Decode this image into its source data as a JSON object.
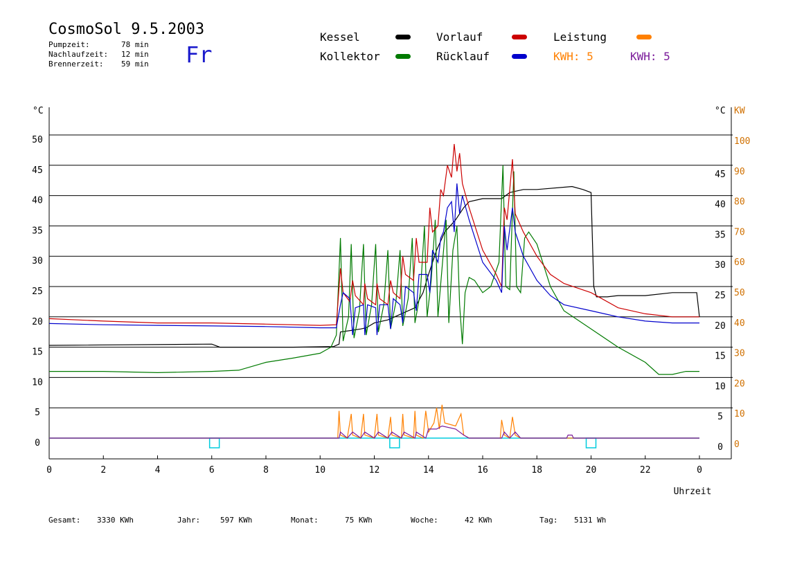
{
  "header": {
    "title": "CosmoSol 9.5.2003",
    "weekday": "Fr",
    "stats": [
      {
        "label": "Pumpzeit:",
        "value": "78 min"
      },
      {
        "label": "Nachlaufzeit:",
        "value": "12 min"
      },
      {
        "label": "Brennerzeit:",
        "value": "59 min"
      }
    ]
  },
  "legend": {
    "kessel": "Kessel",
    "kollektor": "Kollektor",
    "vorlauf": "Vorlauf",
    "ruecklauf": "Rücklauf",
    "leistung": "Leistung",
    "kwh_orange": "KWH: 5",
    "kwh_purple": "KWH: 5"
  },
  "footer": {
    "gesamt_label": "Gesamt:",
    "gesamt_value": "3330 KWh",
    "jahr_label": "Jahr:",
    "jahr_value": "597 KWh",
    "monat_label": "Monat:",
    "monat_value": "75 KWh",
    "woche_label": "Woche:",
    "woche_value": "42 KWh",
    "tag_label": "Tag:",
    "tag_value": "5131 Wh"
  },
  "colors": {
    "kessel": "#000000",
    "kollektor": "#007a00",
    "vorlauf": "#cc0000",
    "ruecklauf": "#0000cc",
    "leistung": "#ff8000",
    "kwh_purple": "#7a1a9a",
    "pump": "#00ccdd"
  },
  "chart_data": {
    "type": "line",
    "xlabel": "Uhrzeit",
    "ylabel_left": "°C",
    "ylabel_right_c": "°C",
    "ylabel_right_kw": "KW",
    "xlim": [
      0,
      24
    ],
    "ylim": [
      0,
      50
    ],
    "ylim_kw": [
      0,
      100
    ],
    "x_ticks": [
      "0",
      "2",
      "4",
      "6",
      "8",
      "10",
      "12",
      "14",
      "16",
      "18",
      "20",
      "22",
      "0"
    ],
    "y_ticks": [
      0,
      5,
      10,
      15,
      20,
      25,
      30,
      35,
      40,
      45,
      50
    ],
    "y_ticks_kw": [
      0,
      10,
      20,
      30,
      40,
      50,
      60,
      70,
      80,
      90,
      100
    ],
    "grid": true,
    "series": [
      {
        "name": "Kessel",
        "color": "#000000",
        "points": [
          [
            0,
            15.3
          ],
          [
            6,
            15.5
          ],
          [
            6.3,
            15
          ],
          [
            9,
            15
          ],
          [
            10.5,
            15.1
          ],
          [
            10.7,
            15.5
          ],
          [
            10.75,
            17.5
          ],
          [
            11.5,
            18
          ],
          [
            11.7,
            18.2
          ],
          [
            12,
            19
          ],
          [
            12.5,
            19.5
          ],
          [
            13,
            20.5
          ],
          [
            13.5,
            21.5
          ],
          [
            13.8,
            24
          ],
          [
            14,
            27
          ],
          [
            14.3,
            31
          ],
          [
            14.6,
            34
          ],
          [
            15,
            36
          ],
          [
            15.3,
            38
          ],
          [
            15.5,
            39
          ],
          [
            16,
            39.5
          ],
          [
            16.7,
            39.5
          ],
          [
            17,
            40.5
          ],
          [
            17.5,
            41
          ],
          [
            18,
            41
          ],
          [
            19.3,
            41.5
          ],
          [
            19.7,
            41
          ],
          [
            20,
            40.5
          ],
          [
            20.1,
            25
          ],
          [
            20.2,
            23.3
          ],
          [
            20.6,
            23.3
          ],
          [
            21,
            23.5
          ],
          [
            22,
            23.5
          ],
          [
            23,
            24
          ],
          [
            23.9,
            24
          ],
          [
            24,
            20
          ]
        ]
      },
      {
        "name": "Kollektor",
        "color": "#007a00",
        "points": [
          [
            0,
            11
          ],
          [
            2,
            11
          ],
          [
            4,
            10.8
          ],
          [
            6,
            11
          ],
          [
            7,
            11.2
          ],
          [
            8,
            12.5
          ],
          [
            9,
            13.2
          ],
          [
            10,
            14
          ],
          [
            10.4,
            15
          ],
          [
            10.6,
            17
          ],
          [
            10.75,
            33
          ],
          [
            10.85,
            16
          ],
          [
            11.05,
            20
          ],
          [
            11.15,
            32
          ],
          [
            11.25,
            16.5
          ],
          [
            11.45,
            21
          ],
          [
            11.6,
            32
          ],
          [
            11.7,
            17
          ],
          [
            11.9,
            22
          ],
          [
            12.05,
            32
          ],
          [
            12.15,
            17.5
          ],
          [
            12.35,
            22
          ],
          [
            12.5,
            31
          ],
          [
            12.6,
            18
          ],
          [
            12.8,
            22.5
          ],
          [
            12.95,
            31
          ],
          [
            13.05,
            18.5
          ],
          [
            13.25,
            23
          ],
          [
            13.4,
            33
          ],
          [
            13.5,
            19
          ],
          [
            13.7,
            24
          ],
          [
            13.85,
            35
          ],
          [
            13.95,
            20
          ],
          [
            14.1,
            26
          ],
          [
            14.25,
            36
          ],
          [
            14.35,
            20
          ],
          [
            14.5,
            28
          ],
          [
            14.65,
            36
          ],
          [
            14.75,
            19
          ],
          [
            14.9,
            31
          ],
          [
            15.05,
            35
          ],
          [
            15.15,
            22
          ],
          [
            15.25,
            15.5
          ],
          [
            15.35,
            24
          ],
          [
            15.5,
            26.5
          ],
          [
            15.7,
            26
          ],
          [
            16,
            24
          ],
          [
            16.3,
            25
          ],
          [
            16.6,
            29
          ],
          [
            16.75,
            45
          ],
          [
            16.85,
            25
          ],
          [
            17,
            24.5
          ],
          [
            17.15,
            44
          ],
          [
            17.25,
            25
          ],
          [
            17.4,
            24
          ],
          [
            17.55,
            33
          ],
          [
            17.7,
            34
          ],
          [
            18,
            32
          ],
          [
            18.5,
            25
          ],
          [
            19,
            21
          ],
          [
            20,
            18
          ],
          [
            21,
            15
          ],
          [
            22,
            12.5
          ],
          [
            22.5,
            10.5
          ],
          [
            23,
            10.5
          ],
          [
            23.5,
            11
          ],
          [
            24,
            11
          ]
        ]
      },
      {
        "name": "Vorlauf",
        "color": "#cc0000",
        "points": [
          [
            0,
            19.7
          ],
          [
            2,
            19.3
          ],
          [
            4,
            19
          ],
          [
            6,
            19
          ],
          [
            8,
            18.8
          ],
          [
            10,
            18.6
          ],
          [
            10.6,
            18.7
          ],
          [
            10.75,
            28
          ],
          [
            10.85,
            24
          ],
          [
            11.1,
            22.5
          ],
          [
            11.2,
            26
          ],
          [
            11.3,
            23.5
          ],
          [
            11.6,
            22
          ],
          [
            11.65,
            25.5
          ],
          [
            11.75,
            23
          ],
          [
            12.05,
            22
          ],
          [
            12.1,
            25.5
          ],
          [
            12.2,
            23
          ],
          [
            12.5,
            22
          ],
          [
            12.6,
            26
          ],
          [
            12.7,
            24
          ],
          [
            12.95,
            23
          ],
          [
            13.05,
            30
          ],
          [
            13.15,
            27
          ],
          [
            13.45,
            26
          ],
          [
            13.55,
            33
          ],
          [
            13.65,
            29
          ],
          [
            13.95,
            29
          ],
          [
            14.05,
            38
          ],
          [
            14.15,
            34
          ],
          [
            14.35,
            35
          ],
          [
            14.45,
            41
          ],
          [
            14.55,
            40
          ],
          [
            14.7,
            45
          ],
          [
            14.85,
            43
          ],
          [
            14.95,
            48.5
          ],
          [
            15.05,
            44
          ],
          [
            15.15,
            47
          ],
          [
            15.25,
            42
          ],
          [
            15.5,
            38
          ],
          [
            16,
            31
          ],
          [
            16.5,
            27
          ],
          [
            16.7,
            25
          ],
          [
            16.8,
            38
          ],
          [
            16.9,
            36
          ],
          [
            17.1,
            46
          ],
          [
            17.2,
            37
          ],
          [
            17.5,
            34
          ],
          [
            18,
            30
          ],
          [
            18.5,
            27
          ],
          [
            19,
            25.5
          ],
          [
            20,
            24
          ],
          [
            21,
            21.5
          ],
          [
            22,
            20.5
          ],
          [
            23,
            20
          ],
          [
            24,
            20
          ]
        ]
      },
      {
        "name": "Rücklauf",
        "color": "#0000cc",
        "points": [
          [
            0,
            18.9
          ],
          [
            2,
            18.7
          ],
          [
            4,
            18.6
          ],
          [
            6,
            18.5
          ],
          [
            8,
            18.4
          ],
          [
            10,
            18.2
          ],
          [
            10.6,
            18.2
          ],
          [
            10.75,
            22
          ],
          [
            10.85,
            24
          ],
          [
            11.1,
            23
          ],
          [
            11.2,
            17
          ],
          [
            11.3,
            21.5
          ],
          [
            11.6,
            22
          ],
          [
            11.65,
            17
          ],
          [
            11.75,
            22
          ],
          [
            12.05,
            21.5
          ],
          [
            12.1,
            17
          ],
          [
            12.2,
            22
          ],
          [
            12.5,
            22
          ],
          [
            12.6,
            18
          ],
          [
            12.7,
            23
          ],
          [
            12.95,
            22
          ],
          [
            13.05,
            19
          ],
          [
            13.15,
            25
          ],
          [
            13.45,
            24
          ],
          [
            13.55,
            21
          ],
          [
            13.65,
            27
          ],
          [
            13.95,
            27
          ],
          [
            14.05,
            24
          ],
          [
            14.15,
            31
          ],
          [
            14.35,
            29
          ],
          [
            14.45,
            33
          ],
          [
            14.55,
            34
          ],
          [
            14.7,
            38
          ],
          [
            14.85,
            39
          ],
          [
            14.95,
            34
          ],
          [
            15.05,
            42
          ],
          [
            15.15,
            37
          ],
          [
            15.25,
            40
          ],
          [
            15.5,
            36
          ],
          [
            16,
            29
          ],
          [
            16.5,
            26
          ],
          [
            16.7,
            24
          ],
          [
            16.8,
            35
          ],
          [
            16.9,
            31
          ],
          [
            17.1,
            38
          ],
          [
            17.2,
            34
          ],
          [
            17.5,
            30
          ],
          [
            18,
            26
          ],
          [
            18.5,
            23.5
          ],
          [
            19,
            22
          ],
          [
            20,
            21
          ],
          [
            21,
            20
          ],
          [
            22,
            19.3
          ],
          [
            23,
            19
          ],
          [
            24,
            19
          ]
        ]
      },
      {
        "name": "Leistung",
        "color": "#ff8000",
        "axis": "kw",
        "points": [
          [
            0,
            0
          ],
          [
            10.65,
            0
          ],
          [
            10.7,
            9
          ],
          [
            10.75,
            1
          ],
          [
            11,
            0
          ],
          [
            11.15,
            8
          ],
          [
            11.2,
            1
          ],
          [
            11.5,
            0
          ],
          [
            11.6,
            8
          ],
          [
            11.65,
            1
          ],
          [
            12,
            0
          ],
          [
            12.1,
            8
          ],
          [
            12.15,
            1
          ],
          [
            12.5,
            0
          ],
          [
            12.6,
            7
          ],
          [
            12.65,
            1
          ],
          [
            13,
            0
          ],
          [
            13.05,
            8
          ],
          [
            13.1,
            1
          ],
          [
            13.45,
            0
          ],
          [
            13.5,
            9
          ],
          [
            13.55,
            1
          ],
          [
            13.8,
            0
          ],
          [
            13.9,
            9
          ],
          [
            14,
            2
          ],
          [
            14.2,
            5
          ],
          [
            14.3,
            10
          ],
          [
            14.4,
            3
          ],
          [
            14.5,
            11
          ],
          [
            14.6,
            5
          ],
          [
            15,
            4
          ],
          [
            15.2,
            8
          ],
          [
            15.3,
            1
          ],
          [
            15.5,
            0
          ],
          [
            16.65,
            0
          ],
          [
            16.7,
            6
          ],
          [
            16.8,
            1
          ],
          [
            17,
            0
          ],
          [
            17.1,
            7
          ],
          [
            17.2,
            1
          ],
          [
            17.4,
            0
          ],
          [
            24,
            0
          ]
        ]
      },
      {
        "name": "KWH",
        "color": "#7a1a9a",
        "axis": "kw",
        "points": [
          [
            0,
            0
          ],
          [
            10.7,
            0
          ],
          [
            10.75,
            2
          ],
          [
            11,
            0
          ],
          [
            11.2,
            2
          ],
          [
            11.5,
            0
          ],
          [
            11.65,
            2
          ],
          [
            12,
            0
          ],
          [
            12.15,
            2
          ],
          [
            12.5,
            0
          ],
          [
            12.65,
            2
          ],
          [
            13,
            0
          ],
          [
            13.1,
            2
          ],
          [
            13.5,
            0
          ],
          [
            13.55,
            2
          ],
          [
            13.9,
            0
          ],
          [
            14,
            3
          ],
          [
            14.3,
            3
          ],
          [
            14.5,
            4
          ],
          [
            15,
            3
          ],
          [
            15.3,
            1
          ],
          [
            15.5,
            0
          ],
          [
            16.7,
            0
          ],
          [
            16.8,
            2
          ],
          [
            17,
            0
          ],
          [
            17.2,
            2
          ],
          [
            17.4,
            0
          ],
          [
            19.1,
            0
          ],
          [
            19.15,
            1
          ],
          [
            19.3,
            1
          ],
          [
            19.35,
            0
          ],
          [
            24,
            0
          ]
        ]
      }
    ],
    "pump_markers": [
      6.1,
      12.75,
      20
    ]
  }
}
